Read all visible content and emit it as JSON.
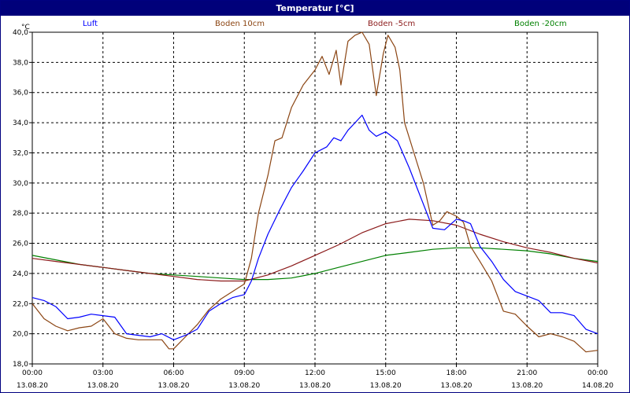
{
  "window": {
    "title": "Temperatur [°C]"
  },
  "colors": {
    "titlebar": "#00007a",
    "grid": "#000000",
    "luft": "#0000ff",
    "boden10": "#8b4513",
    "boden5": "#8b1a1a",
    "boden20": "#008000"
  },
  "chart_data": {
    "type": "line",
    "title": "Temperatur [°C]",
    "ylabel": "°C",
    "ylim": [
      18,
      40
    ],
    "y_ticks": [
      "18,0",
      "20,0",
      "22,0",
      "24,0",
      "26,0",
      "28,0",
      "30,0",
      "32,0",
      "34,0",
      "36,0",
      "38,0",
      "40,0"
    ],
    "x_range_hours": [
      0,
      24
    ],
    "x_ticks": [
      {
        "time": "00:00",
        "date": "13.08.20"
      },
      {
        "time": "03:00",
        "date": "13.08.20"
      },
      {
        "time": "06:00",
        "date": "13.08.20"
      },
      {
        "time": "09:00",
        "date": "13.08.20"
      },
      {
        "time": "12:00",
        "date": "13.08.20"
      },
      {
        "time": "15:00",
        "date": "13.08.20"
      },
      {
        "time": "18:00",
        "date": "13.08.20"
      },
      {
        "time": "21:00",
        "date": "13.08.20"
      },
      {
        "time": "00:00",
        "date": "14.08.20"
      }
    ],
    "grid": true,
    "legend_position": "top",
    "series": [
      {
        "name": "Luft",
        "color": "#0000ff",
        "points": [
          [
            0,
            22.4
          ],
          [
            0.5,
            22.2
          ],
          [
            1,
            21.8
          ],
          [
            1.5,
            21.0
          ],
          [
            2,
            21.1
          ],
          [
            2.5,
            21.3
          ],
          [
            3,
            21.2
          ],
          [
            3.5,
            21.1
          ],
          [
            4,
            20.0
          ],
          [
            4.5,
            19.9
          ],
          [
            5,
            19.8
          ],
          [
            5.5,
            20.0
          ],
          [
            6,
            19.6
          ],
          [
            6.5,
            19.9
          ],
          [
            7,
            20.3
          ],
          [
            7.5,
            21.5
          ],
          [
            8,
            22.0
          ],
          [
            8.5,
            22.4
          ],
          [
            9,
            22.6
          ],
          [
            9.3,
            23.5
          ],
          [
            9.6,
            25.0
          ],
          [
            10,
            26.6
          ],
          [
            10.5,
            28.2
          ],
          [
            11,
            29.7
          ],
          [
            11.5,
            30.8
          ],
          [
            12,
            32.0
          ],
          [
            12.5,
            32.4
          ],
          [
            12.8,
            33.0
          ],
          [
            13.1,
            32.8
          ],
          [
            13.4,
            33.5
          ],
          [
            13.7,
            34.0
          ],
          [
            14,
            34.5
          ],
          [
            14.3,
            33.5
          ],
          [
            14.6,
            33.1
          ],
          [
            15,
            33.4
          ],
          [
            15.5,
            32.8
          ],
          [
            16,
            31.0
          ],
          [
            16.5,
            29.0
          ],
          [
            17,
            27.0
          ],
          [
            17.5,
            26.9
          ],
          [
            18,
            27.6
          ],
          [
            18.3,
            27.5
          ],
          [
            18.6,
            27.3
          ],
          [
            19,
            25.8
          ],
          [
            19.5,
            24.8
          ],
          [
            20,
            23.6
          ],
          [
            20.5,
            22.8
          ],
          [
            21,
            22.5
          ],
          [
            21.5,
            22.2
          ],
          [
            22,
            21.4
          ],
          [
            22.5,
            21.4
          ],
          [
            23,
            21.2
          ],
          [
            23.5,
            20.3
          ],
          [
            24,
            20.0
          ]
        ]
      },
      {
        "name": "Boden 10cm",
        "color": "#8b4513",
        "points": [
          [
            0,
            22.0
          ],
          [
            0.5,
            21.0
          ],
          [
            1,
            20.5
          ],
          [
            1.5,
            20.2
          ],
          [
            2,
            20.4
          ],
          [
            2.5,
            20.5
          ],
          [
            3,
            21.0
          ],
          [
            3.5,
            20.0
          ],
          [
            4,
            19.7
          ],
          [
            4.5,
            19.6
          ],
          [
            5,
            19.6
          ],
          [
            5.5,
            19.6
          ],
          [
            5.8,
            19.0
          ],
          [
            6,
            19.0
          ],
          [
            6.5,
            19.8
          ],
          [
            7,
            20.6
          ],
          [
            7.5,
            21.6
          ],
          [
            8,
            22.3
          ],
          [
            8.5,
            22.8
          ],
          [
            9,
            23.3
          ],
          [
            9.3,
            25.0
          ],
          [
            9.6,
            28.0
          ],
          [
            10,
            30.5
          ],
          [
            10.3,
            32.8
          ],
          [
            10.6,
            33.0
          ],
          [
            11,
            35.0
          ],
          [
            11.5,
            36.5
          ],
          [
            12,
            37.5
          ],
          [
            12.3,
            38.4
          ],
          [
            12.6,
            37.2
          ],
          [
            12.9,
            38.8
          ],
          [
            13.1,
            36.5
          ],
          [
            13.4,
            39.4
          ],
          [
            13.7,
            39.8
          ],
          [
            14,
            40.0
          ],
          [
            14.3,
            39.2
          ],
          [
            14.6,
            35.8
          ],
          [
            14.9,
            38.6
          ],
          [
            15.1,
            39.8
          ],
          [
            15.4,
            39.0
          ],
          [
            15.6,
            37.5
          ],
          [
            15.8,
            34.0
          ],
          [
            16,
            33.0
          ],
          [
            16.3,
            31.5
          ],
          [
            16.6,
            30.0
          ],
          [
            17,
            27.2
          ],
          [
            17.3,
            27.5
          ],
          [
            17.6,
            28.1
          ],
          [
            18,
            27.8
          ],
          [
            18.3,
            27.4
          ],
          [
            18.6,
            25.8
          ],
          [
            19,
            24.8
          ],
          [
            19.5,
            23.5
          ],
          [
            20,
            21.5
          ],
          [
            20.5,
            21.3
          ],
          [
            21,
            20.5
          ],
          [
            21.5,
            19.8
          ],
          [
            22,
            20.0
          ],
          [
            22.5,
            19.8
          ],
          [
            23,
            19.5
          ],
          [
            23.5,
            18.8
          ],
          [
            24,
            18.9
          ]
        ]
      },
      {
        "name": "Boden -5cm",
        "color": "#8b1a1a",
        "points": [
          [
            0,
            25.0
          ],
          [
            1,
            24.8
          ],
          [
            2,
            24.6
          ],
          [
            3,
            24.4
          ],
          [
            4,
            24.2
          ],
          [
            5,
            24.0
          ],
          [
            6,
            23.8
          ],
          [
            7,
            23.6
          ],
          [
            8,
            23.5
          ],
          [
            9,
            23.5
          ],
          [
            10,
            23.9
          ],
          [
            11,
            24.5
          ],
          [
            12,
            25.2
          ],
          [
            13,
            25.9
          ],
          [
            14,
            26.7
          ],
          [
            15,
            27.3
          ],
          [
            16,
            27.6
          ],
          [
            17,
            27.5
          ],
          [
            18,
            27.2
          ],
          [
            19,
            26.6
          ],
          [
            20,
            26.1
          ],
          [
            21,
            25.7
          ],
          [
            22,
            25.4
          ],
          [
            23,
            25.0
          ],
          [
            24,
            24.7
          ]
        ]
      },
      {
        "name": "Boden -20cm",
        "color": "#008000",
        "points": [
          [
            0,
            25.2
          ],
          [
            1,
            24.9
          ],
          [
            2,
            24.6
          ],
          [
            3,
            24.4
          ],
          [
            4,
            24.2
          ],
          [
            5,
            24.0
          ],
          [
            6,
            23.9
          ],
          [
            7,
            23.8
          ],
          [
            8,
            23.7
          ],
          [
            9,
            23.6
          ],
          [
            10,
            23.6
          ],
          [
            11,
            23.7
          ],
          [
            12,
            24.0
          ],
          [
            13,
            24.4
          ],
          [
            14,
            24.8
          ],
          [
            15,
            25.2
          ],
          [
            16,
            25.4
          ],
          [
            17,
            25.6
          ],
          [
            18,
            25.7
          ],
          [
            19,
            25.7
          ],
          [
            20,
            25.6
          ],
          [
            21,
            25.5
          ],
          [
            22,
            25.3
          ],
          [
            23,
            25.0
          ],
          [
            24,
            24.8
          ]
        ]
      }
    ]
  }
}
